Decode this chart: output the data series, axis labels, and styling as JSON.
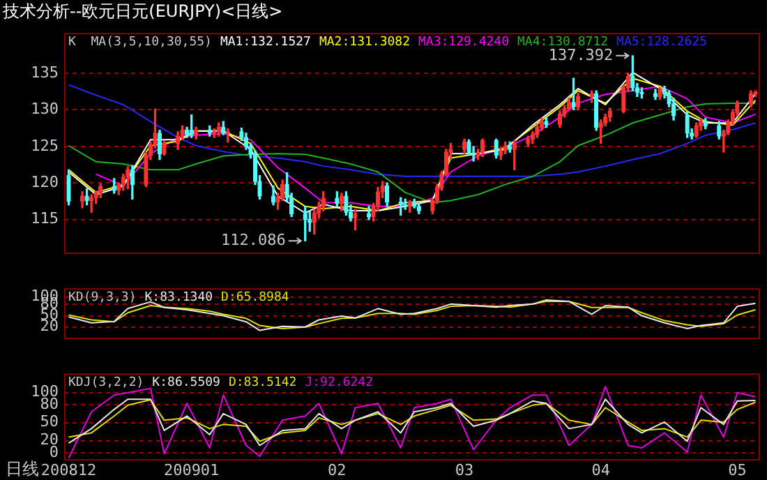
{
  "chart_data": [
    {
      "type": "candlestick",
      "title": "技术分析--欧元日元(EURJPY)<日线>",
      "legend_title": "K  MA(3,5,10,30,55)",
      "legend": "top",
      "grid": "y",
      "tick_labels": "y",
      "xlim": [
        "2008-12-04",
        "2009-05-06"
      ],
      "ylim": [
        110.3,
        140.5
      ],
      "yticks": [
        115,
        120,
        125,
        130,
        135
      ],
      "annotations": [
        {
          "text": "137.392",
          "x": "2009-04-08",
          "y": 137.392
        },
        {
          "text": "112.086",
          "x": "2009-01-26",
          "y": 112.086
        }
      ],
      "series": [
        {
          "colors": [
            "#54fcfc",
            "#ff3232",
            "#54fcfc",
            "#ff3232",
            "#ff3232",
            "#ff3232",
            "#54fcfc",
            "#ff3232",
            "#ff3232",
            "#ff3232",
            "#54fcfc",
            "#ff3232",
            "#ff3232",
            "#ff3232",
            "#54fcfc",
            "#ff3232",
            "#ff3232",
            "#ff3232",
            "#54fcfc",
            "#54fcfc",
            "#ff3232",
            "#54fcfc",
            "#ff3232",
            "#ff3232",
            "#54fcfc",
            "#ff3232",
            "#54fcfc",
            "#54fcfc",
            "#54fcfc",
            "#54fcfc",
            "#54fcfc",
            "#54fcfc",
            "#ff3232",
            "#ff3232",
            "#54fcfc",
            "#54fcfc",
            "#54fcfc",
            "#54fcfc",
            "#ff3232",
            "#ff3232",
            "#ff3232",
            "#54fcfc",
            "#ff3232",
            "#54fcfc",
            "#54fcfc",
            "#ff3232",
            "#54fcfc",
            "#ff3232",
            "#ff3232",
            "#ff3232",
            "#54fcfc",
            "#54fcfc",
            "#54fcfc",
            "#ff3232",
            "#54fcfc",
            "#54fcfc",
            "#ff3232",
            "#ff3232",
            "#ff3232",
            "#ff3232",
            "#ff3232",
            "#ff3232",
            "#54fcfc",
            "#54fcfc",
            "#ff3232",
            "#ff3232",
            "#54fcfc",
            "#ff3232",
            "#ff3232",
            "#54fcfc",
            "#ff3232",
            "#ff3232",
            "#ff3232",
            "#ff3232",
            "#ff3232",
            "#54fcfc",
            "#ff3232",
            "#ff3232",
            "#ff3232",
            "#54fcfc",
            "#ff3232",
            "#ff3232",
            "#54fcfc",
            "#ff3232",
            "#ff3232",
            "#ff3232",
            "#ff3232",
            "#ff3232",
            "#54fcfc",
            "#54fcfc",
            "#54fcfc",
            "#54fcfc",
            "#ff3232",
            "#54fcfc",
            "#54fcfc",
            "#54fcfc",
            "#54fcfc",
            "#54fcfc",
            "#ff3232",
            "#ff3232",
            "#54fcfc",
            "#54fcfc",
            "#ff3232",
            "#ff3232",
            "#ff3232",
            "#ff3232",
            "#ff3232",
            "#ff3232"
          ],
          "x": [
            "2008-12-05",
            "2008-12-08",
            "2008-12-09",
            "2008-12-10",
            "2008-12-11",
            "2008-12-12",
            "2008-12-15",
            "2008-12-16",
            "2008-12-17",
            "2008-12-18",
            "2008-12-19",
            "2008-12-22",
            "2008-12-23",
            "2008-12-24",
            "2008-12-25",
            "2008-12-26",
            "2008-12-29",
            "2008-12-30",
            "2008-12-31",
            "2009-01-01",
            "2009-01-02",
            "2009-01-05",
            "2009-01-06",
            "2009-01-07",
            "2009-01-08",
            "2009-01-09",
            "2009-01-12",
            "2009-01-13",
            "2009-01-14",
            "2009-01-15",
            "2009-01-16",
            "2009-01-19",
            "2009-01-20",
            "2009-01-21",
            "2009-01-22",
            "2009-01-23",
            "2009-01-26",
            "2009-01-27",
            "2009-01-28",
            "2009-01-29",
            "2009-01-30",
            "2009-02-02",
            "2009-02-03",
            "2009-02-04",
            "2009-02-05",
            "2009-02-06",
            "2009-02-09",
            "2009-02-10",
            "2009-02-11",
            "2009-02-12",
            "2009-02-13",
            "2009-02-16",
            "2009-02-17",
            "2009-02-18",
            "2009-02-19",
            "2009-02-20",
            "2009-02-23",
            "2009-02-24",
            "2009-02-25",
            "2009-02-26",
            "2009-02-27",
            "2009-03-02",
            "2009-03-03",
            "2009-03-04",
            "2009-03-05",
            "2009-03-06",
            "2009-03-09",
            "2009-03-10",
            "2009-03-11",
            "2009-03-12",
            "2009-03-13",
            "2009-03-16",
            "2009-03-17",
            "2009-03-18",
            "2009-03-19",
            "2009-03-20",
            "2009-03-23",
            "2009-03-24",
            "2009-03-25",
            "2009-03-26",
            "2009-03-27",
            "2009-03-30",
            "2009-03-31",
            "2009-04-01",
            "2009-04-02",
            "2009-04-03",
            "2009-04-06",
            "2009-04-07",
            "2009-04-08",
            "2009-04-09",
            "2009-04-10",
            "2009-04-13",
            "2009-04-14",
            "2009-04-15",
            "2009-04-16",
            "2009-04-17",
            "2009-04-20",
            "2009-04-21",
            "2009-04-22",
            "2009-04-23",
            "2009-04-24",
            "2009-04-27",
            "2009-04-28",
            "2009-04-29",
            "2009-04-30",
            "2009-05-01",
            "2009-05-04",
            "2009-05-05"
          ],
          "ohlc": [
            [
              121.0,
              121.8,
              117.0,
              117.5
            ],
            [
              117.5,
              118.8,
              116.6,
              118.2
            ],
            [
              118.2,
              119.2,
              117.0,
              117.6
            ],
            [
              117.6,
              118.4,
              116.0,
              118.0
            ],
            [
              118.0,
              118.9,
              117.2,
              118.6
            ],
            [
              118.6,
              119.9,
              118.0,
              119.5
            ],
            [
              119.5,
              120.6,
              118.6,
              119.0
            ],
            [
              119.0,
              120.0,
              118.4,
              119.8
            ],
            [
              119.8,
              121.2,
              119.0,
              120.8
            ],
            [
              120.8,
              122.2,
              119.2,
              121.8
            ],
            [
              121.8,
              122.4,
              117.8,
              119.8
            ],
            [
              119.8,
              124.2,
              119.5,
              123.8
            ],
            [
              123.8,
              125.6,
              123.2,
              125.2
            ],
            [
              125.2,
              130.1,
              124.8,
              126.8
            ],
            [
              126.8,
              127.2,
              123.2,
              124.0
            ],
            [
              124.0,
              125.8,
              123.8,
              125.4
            ],
            [
              125.4,
              127.0,
              124.6,
              126.4
            ],
            [
              126.4,
              127.8,
              125.9,
              127.2
            ],
            [
              127.2,
              127.6,
              126.2,
              126.6
            ],
            [
              127.2,
              129.3,
              126.2,
              126.6
            ],
            [
              126.6,
              127.6,
              126.0,
              127.2
            ],
            [
              127.2,
              127.8,
              126.4,
              126.8
            ],
            [
              126.8,
              127.4,
              126.2,
              127.0
            ],
            [
              127.0,
              128.2,
              126.4,
              127.6
            ],
            [
              127.6,
              128.4,
              126.6,
              126.8
            ],
            [
              126.8,
              127.4,
              125.6,
              127.0
            ],
            [
              127.0,
              127.5,
              125.8,
              126.2
            ],
            [
              126.2,
              126.8,
              124.6,
              125.0
            ],
            [
              125.0,
              125.4,
              123.4,
              124.0
            ],
            [
              124.0,
              124.4,
              119.8,
              120.2
            ],
            [
              120.2,
              121.0,
              117.8,
              118.2
            ],
            [
              118.2,
              119.6,
              117.0,
              117.4
            ],
            [
              117.4,
              118.6,
              116.4,
              118.0
            ],
            [
              118.0,
              120.4,
              117.6,
              119.8
            ],
            [
              119.8,
              121.4,
              117.6,
              118.0
            ],
            [
              118.0,
              118.6,
              115.4,
              115.8
            ],
            [
              115.8,
              116.8,
              112.086,
              115.0
            ],
            [
              115.0,
              116.2,
              113.4,
              114.6
            ],
            [
              114.6,
              116.4,
              113.0,
              115.9
            ],
            [
              115.9,
              117.4,
              115.2,
              116.8
            ],
            [
              116.8,
              118.8,
              116.2,
              117.9
            ],
            [
              117.9,
              118.8,
              116.8,
              117.2
            ],
            [
              117.2,
              118.6,
              116.2,
              118.2
            ],
            [
              118.2,
              118.8,
              115.6,
              116.0
            ],
            [
              116.0,
              117.0,
              114.8,
              115.2
            ],
            [
              115.2,
              116.4,
              113.6,
              115.8
            ],
            [
              115.8,
              116.8,
              115.0,
              115.4
            ],
            [
              115.4,
              117.2,
              114.8,
              116.8
            ],
            [
              116.8,
              119.4,
              116.2,
              118.8
            ],
            [
              118.8,
              120.2,
              118.0,
              119.6
            ],
            [
              119.6,
              120.0,
              116.8,
              117.4
            ],
            [
              117.4,
              118.0,
              115.6,
              117.0
            ],
            [
              117.0,
              117.8,
              116.4,
              116.8
            ],
            [
              116.8,
              117.6,
              116.0,
              117.4
            ],
            [
              117.4,
              117.8,
              116.6,
              116.8
            ],
            [
              116.8,
              117.2,
              115.8,
              116.2
            ],
            [
              116.2,
              117.8,
              115.8,
              117.6
            ],
            [
              117.6,
              119.8,
              117.2,
              119.4
            ],
            [
              119.4,
              121.6,
              119.0,
              121.2
            ],
            [
              121.2,
              124.6,
              121.0,
              124.2
            ],
            [
              124.2,
              125.4,
              123.2,
              124.6
            ],
            [
              124.6,
              126.0,
              124.0,
              125.6
            ],
            [
              125.6,
              125.9,
              123.8,
              124.0
            ],
            [
              124.0,
              125.0,
              123.0,
              123.8
            ],
            [
              123.8,
              124.6,
              123.2,
              124.2
            ],
            [
              124.2,
              126.0,
              123.6,
              125.8
            ],
            [
              125.8,
              126.0,
              123.4,
              123.8
            ],
            [
              123.8,
              124.8,
              123.2,
              124.4
            ],
            [
              124.4,
              125.6,
              124.0,
              125.0
            ],
            [
              125.0,
              125.6,
              124.2,
              124.6
            ],
            [
              124.6,
              125.8,
              121.8,
              125.4
            ],
            [
              125.4,
              126.4,
              125.0,
              126.0
            ],
            [
              126.0,
              127.0,
              125.4,
              126.6
            ],
            [
              126.6,
              128.0,
              126.2,
              127.6
            ],
            [
              127.6,
              128.8,
              127.2,
              128.4
            ],
            [
              128.4,
              129.0,
              127.6,
              128.0
            ],
            [
              128.0,
              129.8,
              127.6,
              129.4
            ],
            [
              129.4,
              130.6,
              129.0,
              130.2
            ],
            [
              130.2,
              131.6,
              130.0,
              131.0
            ],
            [
              131.0,
              134.3,
              130.0,
              130.4
            ],
            [
              130.4,
              132.2,
              130.0,
              131.8
            ],
            [
              131.8,
              132.6,
              131.0,
              132.2
            ],
            [
              132.2,
              132.6,
              127.2,
              127.6
            ],
            [
              127.6,
              128.6,
              125.4,
              128.2
            ],
            [
              128.2,
              129.4,
              127.8,
              129.0
            ],
            [
              129.0,
              130.2,
              128.4,
              129.8
            ],
            [
              129.8,
              133.4,
              129.6,
              133.0
            ],
            [
              133.0,
              135.0,
              132.6,
              134.6
            ],
            [
              134.6,
              137.392,
              132.6,
              133.0
            ],
            [
              133.0,
              133.6,
              131.8,
              132.4
            ],
            [
              132.4,
              133.0,
              131.6,
              132.2
            ],
            [
              132.2,
              132.8,
              131.4,
              131.8
            ],
            [
              131.8,
              133.0,
              131.4,
              132.8
            ],
            [
              132.8,
              133.2,
              131.6,
              132.2
            ],
            [
              132.2,
              132.6,
              130.4,
              130.8
            ],
            [
              130.8,
              131.6,
              128.6,
              129.2
            ],
            [
              129.2,
              129.8,
              126.2,
              126.8
            ],
            [
              126.8,
              127.4,
              126.0,
              126.4
            ],
            [
              126.4,
              128.2,
              126.2,
              127.8
            ],
            [
              127.8,
              128.8,
              127.2,
              128.4
            ],
            [
              128.4,
              128.8,
              127.4,
              127.8
            ],
            [
              127.8,
              128.4,
              126.0,
              126.4
            ],
            [
              126.4,
              127.2,
              124.2,
              126.8
            ],
            [
              126.8,
              128.6,
              126.6,
              128.4
            ],
            [
              128.4,
              130.0,
              128.0,
              129.6
            ],
            [
              129.6,
              131.2,
              129.2,
              130.8
            ],
            [
              130.8,
              132.6,
              130.4,
              132.2
            ],
            [
              132.2,
              132.6,
              131.8,
              132.4
            ]
          ]
        },
        {
          "type": "line",
          "name": "MA1:132.1527",
          "color": "#ffffff",
          "x": [
            "2008-12-05",
            "2008-12-11",
            "2008-12-17",
            "2008-12-23",
            "2008-12-29",
            "2009-01-02",
            "2009-01-08",
            "2009-01-14",
            "2009-01-20",
            "2009-01-26",
            "2009-01-30",
            "2009-02-05",
            "2009-02-11",
            "2009-02-17",
            "2009-02-23",
            "2009-02-27",
            "2009-03-05",
            "2009-03-11",
            "2009-03-17",
            "2009-03-23",
            "2009-03-27",
            "2009-04-02",
            "2009-04-08",
            "2009-04-14",
            "2009-04-20",
            "2009-04-24",
            "2009-04-30",
            "2009-05-05"
          ],
          "values": [
            121.5,
            118.4,
            119.6,
            125.9,
            125.9,
            127.1,
            127.1,
            124.6,
            118.2,
            115.9,
            117.1,
            116.2,
            116.2,
            116.8,
            117.6,
            124,
            124,
            124.6,
            127.9,
            130.7,
            132.9,
            130.7,
            135.1,
            132.9,
            129.3,
            128.2,
            128.2,
            132.2
          ]
        },
        {
          "type": "line",
          "name": "MA2:131.3082",
          "color": "#ffff00",
          "x": [
            "2008-12-05",
            "2008-12-11",
            "2008-12-17",
            "2008-12-23",
            "2008-12-29",
            "2009-01-02",
            "2009-01-08",
            "2009-01-14",
            "2009-01-20",
            "2009-01-26",
            "2009-01-30",
            "2009-02-05",
            "2009-02-11",
            "2009-02-17",
            "2009-02-23",
            "2009-02-27",
            "2009-03-05",
            "2009-03-11",
            "2009-03-17",
            "2009-03-23",
            "2009-03-27",
            "2009-04-02",
            "2009-04-08",
            "2009-04-14",
            "2009-04-20",
            "2009-04-24",
            "2009-04-30",
            "2009-05-05"
          ],
          "values": [
            121.8,
            118.7,
            119.8,
            125.1,
            125.7,
            127.1,
            127.1,
            125.4,
            119.3,
            116.8,
            116.5,
            116.8,
            116.2,
            117.3,
            117.6,
            123.4,
            124,
            124.8,
            127.6,
            130.4,
            132.6,
            130.9,
            134.3,
            133.2,
            129.8,
            128.4,
            127.9,
            131.3
          ]
        },
        {
          "type": "line",
          "name": "MA3:129.4240",
          "color": "#ff00ff",
          "x": [
            "2008-12-11",
            "2008-12-17",
            "2008-12-23",
            "2008-12-29",
            "2009-01-02",
            "2009-01-08",
            "2009-01-14",
            "2009-01-20",
            "2009-01-26",
            "2009-01-30",
            "2009-02-05",
            "2009-02-11",
            "2009-02-17",
            "2009-02-23",
            "2009-02-27",
            "2009-03-05",
            "2009-03-11",
            "2009-03-17",
            "2009-03-23",
            "2009-03-27",
            "2009-04-02",
            "2009-04-08",
            "2009-04-14",
            "2009-04-20",
            "2009-04-24",
            "2009-04-30",
            "2009-05-05"
          ],
          "values": [
            121.2,
            119.6,
            124,
            126.2,
            126.5,
            126.8,
            125.9,
            122.1,
            119.3,
            117.3,
            117.3,
            116.8,
            116.8,
            117.9,
            121.5,
            123.7,
            124.8,
            126.5,
            129,
            130.9,
            132.1,
            132.6,
            133.2,
            131.5,
            129,
            128.2,
            129.4
          ]
        },
        {
          "type": "line",
          "name": "MA4:130.8712",
          "color": "#22b322",
          "x": [
            "2008-12-05",
            "2008-12-11",
            "2008-12-17",
            "2008-12-23",
            "2008-12-29",
            "2009-01-02",
            "2009-01-08",
            "2009-01-14",
            "2009-01-20",
            "2009-01-26",
            "2009-01-30",
            "2009-02-05",
            "2009-02-11",
            "2009-02-17",
            "2009-02-23",
            "2009-02-27",
            "2009-03-05",
            "2009-03-11",
            "2009-03-17",
            "2009-03-23",
            "2009-03-27",
            "2009-04-02",
            "2009-04-08",
            "2009-04-14",
            "2009-04-20",
            "2009-04-24",
            "2009-04-30",
            "2009-05-05"
          ],
          "values": [
            125.1,
            122.9,
            122.6,
            121.8,
            121.8,
            122.6,
            123.7,
            123.9,
            124,
            123.9,
            123.4,
            122.6,
            121.5,
            118.7,
            117.3,
            117.6,
            118.4,
            119.8,
            120.9,
            122.9,
            125.1,
            126.5,
            128.2,
            129.3,
            130.4,
            130.8,
            130.9,
            130.9
          ]
        },
        {
          "type": "line",
          "name": "MA5:128.2625",
          "color": "#2828ff",
          "x": [
            "2008-12-05",
            "2008-12-11",
            "2008-12-17",
            "2008-12-23",
            "2008-12-29",
            "2009-01-02",
            "2009-01-08",
            "2009-01-14",
            "2009-01-20",
            "2009-01-26",
            "2009-01-30",
            "2009-02-05",
            "2009-02-11",
            "2009-02-17",
            "2009-02-23",
            "2009-02-27",
            "2009-03-05",
            "2009-03-11",
            "2009-03-17",
            "2009-03-23",
            "2009-03-27",
            "2009-04-02",
            "2009-04-08",
            "2009-04-14",
            "2009-04-20",
            "2009-04-24",
            "2009-04-30",
            "2009-05-05"
          ],
          "values": [
            133.4,
            132,
            130.7,
            128.4,
            126.2,
            125.1,
            124.3,
            123.7,
            123.4,
            122.9,
            122.3,
            121.8,
            121.2,
            120.9,
            120.9,
            120.9,
            120.9,
            120.9,
            120.9,
            121.2,
            121.5,
            122.3,
            123.2,
            124,
            125.4,
            126.5,
            127.3,
            128.2
          ]
        }
      ]
    },
    {
      "type": "line",
      "legend_title": "KD(9,3,3)",
      "legend": "top left",
      "grid": "y",
      "tick_labels": "y",
      "xlim": [
        "2008-12-04",
        "2009-05-06"
      ],
      "ylim": [
        -12,
        123
      ],
      "yticks": [
        20,
        50,
        80,
        100
      ],
      "series": [
        {
          "name": "K:83.1340",
          "color": "#e8e8e8",
          "x": [
            "2008-12-05",
            "2008-12-10",
            "2008-12-15",
            "2008-12-18",
            "2008-12-23",
            "2008-12-26",
            "2008-12-31",
            "2009-01-05",
            "2009-01-08",
            "2009-01-13",
            "2009-01-16",
            "2009-01-21",
            "2009-01-26",
            "2009-01-29",
            "2009-02-03",
            "2009-02-06",
            "2009-02-11",
            "2009-02-16",
            "2009-02-19",
            "2009-02-24",
            "2009-02-27",
            "2009-03-04",
            "2009-03-09",
            "2009-03-12",
            "2009-03-17",
            "2009-03-20",
            "2009-03-25",
            "2009-03-30",
            "2009-04-02",
            "2009-04-07",
            "2009-04-10",
            "2009-04-15",
            "2009-04-20",
            "2009-04-23",
            "2009-04-28",
            "2009-05-01",
            "2009-05-05"
          ],
          "values": [
            47,
            31,
            35,
            69,
            87,
            72,
            66,
            56,
            50,
            34,
            11,
            22,
            20,
            39,
            49,
            44,
            69,
            54,
            56,
            69,
            81,
            77,
            73,
            77,
            81,
            92,
            88,
            54,
            77,
            73,
            50,
            31,
            16,
            24,
            31,
            75,
            83
          ]
        },
        {
          "name": "D:65.8984",
          "color": "#e0e000",
          "x": [
            "2008-12-05",
            "2008-12-10",
            "2008-12-15",
            "2008-12-18",
            "2008-12-23",
            "2008-12-26",
            "2008-12-31",
            "2009-01-05",
            "2009-01-08",
            "2009-01-13",
            "2009-01-16",
            "2009-01-21",
            "2009-01-26",
            "2009-01-29",
            "2009-02-03",
            "2009-02-06",
            "2009-02-11",
            "2009-02-16",
            "2009-02-19",
            "2009-02-24",
            "2009-02-27",
            "2009-03-04",
            "2009-03-09",
            "2009-03-12",
            "2009-03-17",
            "2009-03-20",
            "2009-03-25",
            "2009-03-30",
            "2009-04-02",
            "2009-04-07",
            "2009-04-10",
            "2009-04-15",
            "2009-04-20",
            "2009-04-23",
            "2009-04-28",
            "2009-05-01",
            "2009-05-05"
          ],
          "values": [
            52,
            39,
            34,
            58,
            77,
            73,
            69,
            62,
            54,
            43,
            24,
            16,
            20,
            29,
            43,
            44,
            56,
            56,
            54,
            64,
            75,
            77,
            75,
            73,
            81,
            88,
            88,
            72,
            72,
            72,
            58,
            37,
            26,
            22,
            29,
            52,
            66
          ]
        }
      ]
    },
    {
      "type": "line",
      "legend_title": "KDJ(3,2,2)",
      "legend": "top left",
      "grid": "y",
      "annotations": [
        "日线"
      ],
      "xlim": [
        "2008-12-04",
        "2009-05-06"
      ],
      "xticks": [
        {
          "value": "2008-12-05",
          "label": "200812"
        },
        {
          "value": "2009-01-01",
          "label": "200901"
        },
        {
          "value": "2009-02-02",
          "label": "02"
        },
        {
          "value": "2009-03-02",
          "label": "03"
        },
        {
          "value": "2009-04-01",
          "label": "04"
        },
        {
          "value": "2009-05-01",
          "label": "05"
        }
      ],
      "ylim": [
        -13,
        132
      ],
      "yticks": [
        0,
        20,
        50,
        80,
        100
      ],
      "series": [
        {
          "name": "K:86.5509",
          "color": "#e8e8e8",
          "x": [
            "2008-12-05",
            "2008-12-10",
            "2008-12-15",
            "2008-12-18",
            "2008-12-23",
            "2008-12-26",
            "2008-12-31",
            "2009-01-05",
            "2009-01-08",
            "2009-01-13",
            "2009-01-16",
            "2009-01-21",
            "2009-01-26",
            "2009-01-29",
            "2009-02-03",
            "2009-02-06",
            "2009-02-11",
            "2009-02-16",
            "2009-02-19",
            "2009-02-24",
            "2009-02-27",
            "2009-03-04",
            "2009-03-09",
            "2009-03-12",
            "2009-03-17",
            "2009-03-20",
            "2009-03-25",
            "2009-03-30",
            "2009-04-02",
            "2009-04-07",
            "2009-04-10",
            "2009-04-15",
            "2009-04-20",
            "2009-04-23",
            "2009-04-28",
            "2009-05-01",
            "2009-05-05"
          ],
          "values": [
            16,
            40,
            72,
            89,
            89,
            37,
            61,
            30,
            65,
            47,
            12,
            37,
            40,
            65,
            40,
            54,
            68,
            33,
            68,
            75,
            82,
            44,
            54,
            65,
            86,
            82,
            40,
            47,
            89,
            47,
            33,
            51,
            19,
            75,
            47,
            86,
            87
          ]
        },
        {
          "name": "D:83.5142",
          "color": "#e0e000",
          "x": [
            "2008-12-05",
            "2008-12-10",
            "2008-12-15",
            "2008-12-18",
            "2008-12-23",
            "2008-12-26",
            "2008-12-31",
            "2009-01-05",
            "2009-01-08",
            "2009-01-13",
            "2009-01-16",
            "2009-01-21",
            "2009-01-26",
            "2009-01-29",
            "2009-02-03",
            "2009-02-06",
            "2009-02-11",
            "2009-02-16",
            "2009-02-19",
            "2009-02-24",
            "2009-02-27",
            "2009-03-04",
            "2009-03-09",
            "2009-03-12",
            "2009-03-17",
            "2009-03-20",
            "2009-03-25",
            "2009-03-30",
            "2009-04-02",
            "2009-04-07",
            "2009-04-10",
            "2009-04-15",
            "2009-04-20",
            "2009-04-23",
            "2009-04-28",
            "2009-05-01",
            "2009-05-05"
          ],
          "values": [
            26,
            33,
            61,
            79,
            88,
            54,
            58,
            40,
            47,
            44,
            19,
            33,
            37,
            58,
            47,
            54,
            65,
            47,
            61,
            72,
            79,
            54,
            56,
            65,
            79,
            82,
            54,
            47,
            75,
            51,
            37,
            40,
            26,
            54,
            51,
            72,
            84
          ]
        },
        {
          "name": "J:92.6242",
          "color": "#e000e0",
          "x": [
            "2008-12-05",
            "2008-12-10",
            "2008-12-15",
            "2008-12-18",
            "2008-12-23",
            "2008-12-26",
            "2008-12-31",
            "2009-01-05",
            "2009-01-08",
            "2009-01-13",
            "2009-01-16",
            "2009-01-21",
            "2009-01-26",
            "2009-01-29",
            "2009-02-03",
            "2009-02-06",
            "2009-02-11",
            "2009-02-16",
            "2009-02-19",
            "2009-02-24",
            "2009-02-27",
            "2009-03-04",
            "2009-03-09",
            "2009-03-12",
            "2009-03-17",
            "2009-03-20",
            "2009-03-25",
            "2009-03-30",
            "2009-04-02",
            "2009-04-07",
            "2009-04-10",
            "2009-04-15",
            "2009-04-20",
            "2009-04-23",
            "2009-04-28",
            "2009-05-01",
            "2009-05-05"
          ],
          "values": [
            -9,
            68,
            96,
            100,
            107,
            -2,
            82,
            8,
            96,
            12,
            -6,
            54,
            61,
            82,
            -2,
            75,
            82,
            8,
            75,
            82,
            89,
            5,
            54,
            75,
            96,
            96,
            12,
            47,
            110,
            12,
            8,
            33,
            1,
            96,
            26,
            100,
            93
          ]
        }
      ]
    }
  ]
}
